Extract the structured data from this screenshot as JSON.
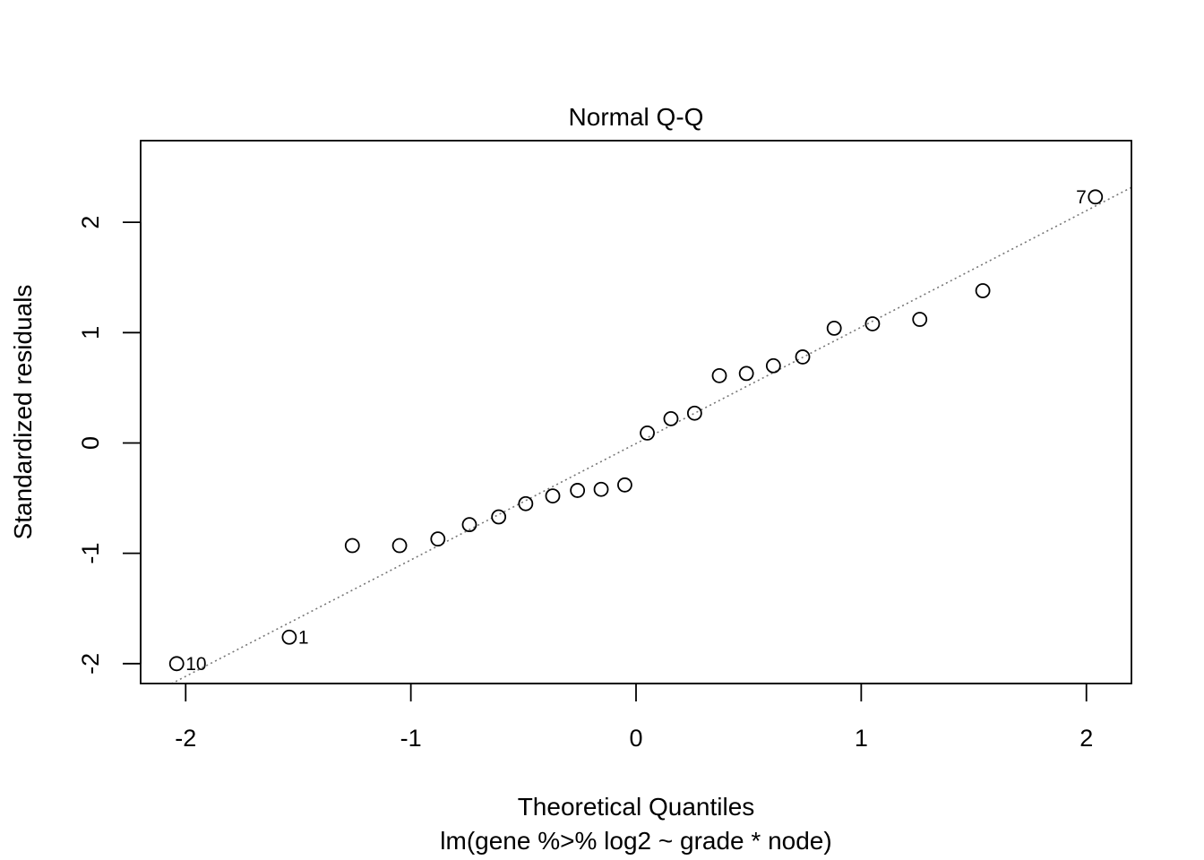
{
  "chart_data": {
    "type": "scatter",
    "title": "Normal Q-Q",
    "xlabel": "Theoretical Quantiles",
    "subtitle": "lm(gene %>% log2 ~ grade * node)",
    "ylabel": "Standardized residuals",
    "xlim": [
      -2.2,
      2.2
    ],
    "ylim": [
      -2.18,
      2.74
    ],
    "x_ticks": [
      -2,
      -1,
      0,
      1,
      2
    ],
    "x_tick_labels": [
      "-2",
      "-1",
      "0",
      "1",
      "2"
    ],
    "y_ticks": [
      -2,
      -1,
      0,
      1,
      2
    ],
    "y_tick_labels": [
      "-2",
      "-1",
      "0",
      "1",
      "2"
    ],
    "grid": false,
    "reference_line": {
      "slope": 1.055,
      "intercept": -0.005,
      "style": "dotted",
      "color": "#777777"
    },
    "points": [
      {
        "x": -2.04,
        "y": -2.0,
        "label": "10"
      },
      {
        "x": -1.54,
        "y": -1.76,
        "label": "1"
      },
      {
        "x": -1.26,
        "y": -0.93
      },
      {
        "x": -1.05,
        "y": -0.93
      },
      {
        "x": -0.88,
        "y": -0.87
      },
      {
        "x": -0.74,
        "y": -0.74
      },
      {
        "x": -0.61,
        "y": -0.67
      },
      {
        "x": -0.49,
        "y": -0.55
      },
      {
        "x": -0.37,
        "y": -0.48
      },
      {
        "x": -0.26,
        "y": -0.43
      },
      {
        "x": -0.155,
        "y": -0.42
      },
      {
        "x": -0.05,
        "y": -0.38
      },
      {
        "x": 0.05,
        "y": 0.09
      },
      {
        "x": 0.155,
        "y": 0.22
      },
      {
        "x": 0.26,
        "y": 0.27
      },
      {
        "x": 0.37,
        "y": 0.61
      },
      {
        "x": 0.49,
        "y": 0.63
      },
      {
        "x": 0.61,
        "y": 0.7
      },
      {
        "x": 0.74,
        "y": 0.78
      },
      {
        "x": 0.88,
        "y": 1.04
      },
      {
        "x": 1.05,
        "y": 1.08
      },
      {
        "x": 1.26,
        "y": 1.12
      },
      {
        "x": 1.54,
        "y": 1.38
      },
      {
        "x": 2.04,
        "y": 2.23,
        "label": "7"
      }
    ],
    "point_style": "open-circle",
    "point_color": "#000000"
  }
}
